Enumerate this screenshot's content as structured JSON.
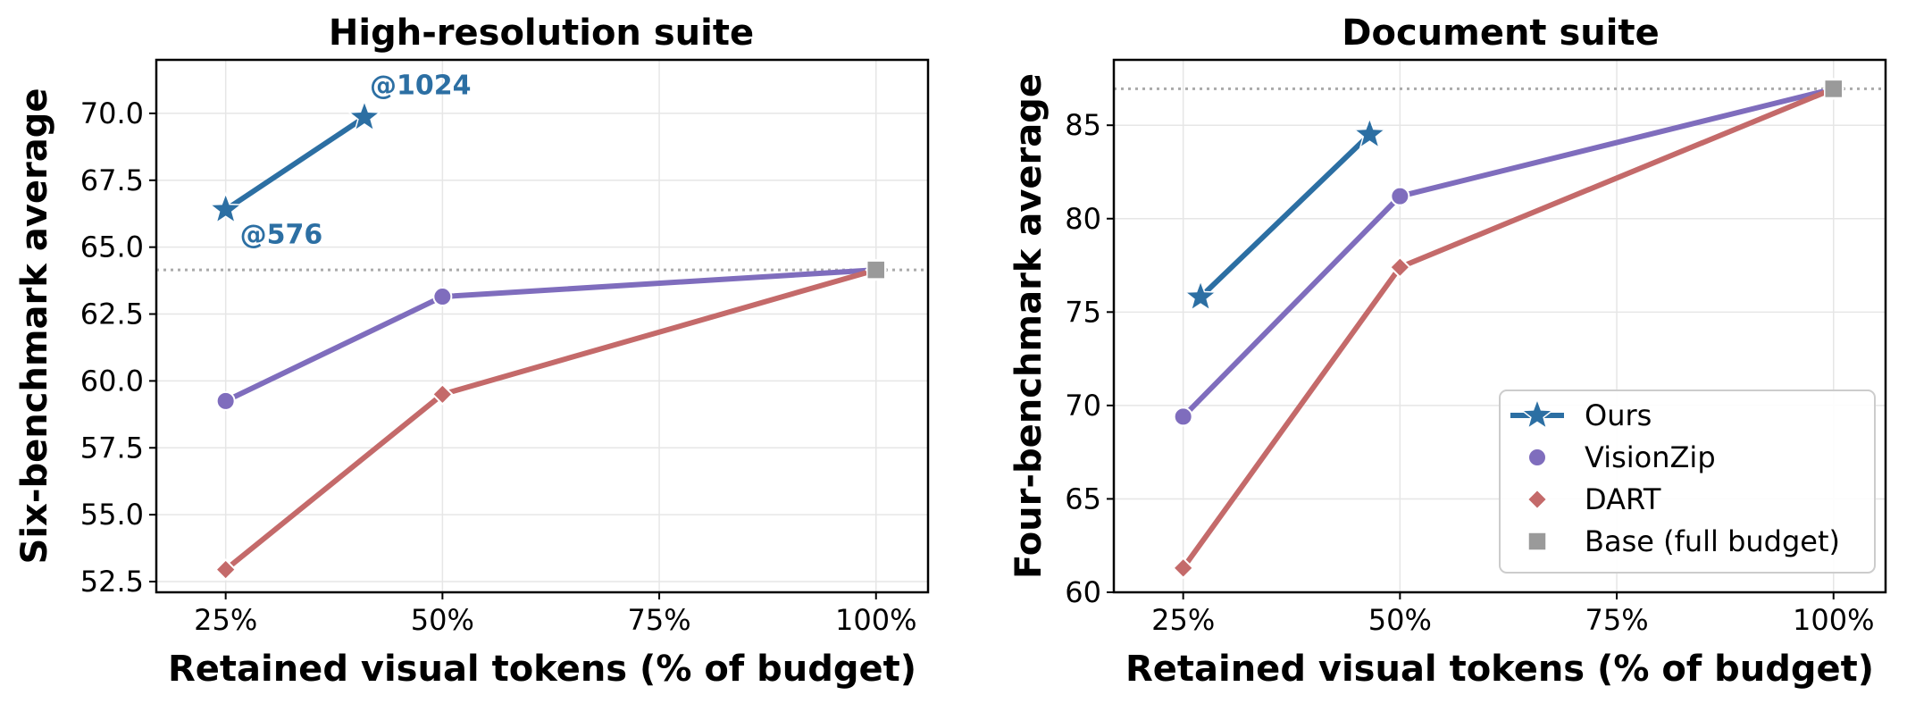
{
  "chart_data": [
    {
      "type": "line",
      "title": "High-resolution suite",
      "xlabel": "Retained visual tokens (% of budget)",
      "ylabel": "Six-benchmark average",
      "xlim": [
        17,
        106
      ],
      "ylim": [
        52.1,
        72.0
      ],
      "xticks": [
        25,
        50,
        75,
        100
      ],
      "xtick_labels": [
        "25%",
        "50%",
        "75%",
        "100%"
      ],
      "yticks": [
        52.5,
        55.0,
        57.5,
        60.0,
        62.5,
        65.0,
        67.5,
        70.0
      ],
      "ytick_labels": [
        "52.5",
        "55.0",
        "57.5",
        "60.0",
        "62.5",
        "65.0",
        "67.5",
        "70.0"
      ],
      "grid": true,
      "reference_line": {
        "y": 64.15,
        "style": "dotted",
        "color": "#aaaaaa"
      },
      "series": [
        {
          "name": "Ours",
          "marker": "star",
          "color": "#2c6fa3",
          "x": [
            25,
            41
          ],
          "y": [
            66.4,
            69.85
          ]
        },
        {
          "name": "VisionZip",
          "marker": "circle",
          "color": "#7f6dbd",
          "x": [
            25,
            50,
            100
          ],
          "y": [
            59.25,
            63.15,
            64.15
          ]
        },
        {
          "name": "DART",
          "marker": "diamond",
          "color": "#c46a6a",
          "x": [
            25,
            50,
            100
          ],
          "y": [
            52.95,
            59.5,
            64.15
          ]
        },
        {
          "name": "Base (full budget)",
          "marker": "square",
          "color": "#9a9a9a",
          "x": [
            100
          ],
          "y": [
            64.15
          ]
        }
      ],
      "annotations": [
        {
          "text": "@1024",
          "x": 41,
          "y": 69.85,
          "color": "#2c6fa3"
        },
        {
          "text": "@576",
          "x": 25,
          "y": 66.4,
          "color": "#2c6fa3"
        }
      ]
    },
    {
      "type": "line",
      "title": "Document suite",
      "xlabel": "Retained visual tokens (% of budget)",
      "ylabel": "Four-benchmark average",
      "xlim": [
        17,
        106
      ],
      "ylim": [
        60,
        88.5
      ],
      "xticks": [
        25,
        50,
        75,
        100
      ],
      "xtick_labels": [
        "25%",
        "50%",
        "75%",
        "100%"
      ],
      "yticks": [
        60,
        65,
        70,
        75,
        80,
        85
      ],
      "ytick_labels": [
        "60",
        "65",
        "70",
        "75",
        "80",
        "85"
      ],
      "grid": true,
      "reference_line": {
        "y": 86.95,
        "style": "dotted",
        "color": "#aaaaaa"
      },
      "legend": {
        "placement": "bottom-right",
        "entries": [
          {
            "label": "Ours",
            "marker": "star",
            "color": "#2c6fa3",
            "line": true
          },
          {
            "label": "VisionZip",
            "marker": "circle",
            "color": "#7f6dbd",
            "line": false
          },
          {
            "label": "DART",
            "marker": "diamond",
            "color": "#c46a6a",
            "line": false
          },
          {
            "label": "Base (full budget)",
            "marker": "square",
            "color": "#9a9a9a",
            "line": false
          }
        ]
      },
      "series": [
        {
          "name": "Ours",
          "marker": "star",
          "color": "#2c6fa3",
          "x": [
            27,
            46.5
          ],
          "y": [
            75.8,
            84.5
          ]
        },
        {
          "name": "VisionZip",
          "marker": "circle",
          "color": "#7f6dbd",
          "x": [
            25,
            50,
            100
          ],
          "y": [
            69.4,
            81.2,
            86.95
          ]
        },
        {
          "name": "DART",
          "marker": "diamond",
          "color": "#c46a6a",
          "x": [
            25,
            50,
            100
          ],
          "y": [
            61.3,
            77.4,
            86.95
          ]
        },
        {
          "name": "Base (full budget)",
          "marker": "square",
          "color": "#9a9a9a",
          "x": [
            100
          ],
          "y": [
            86.95
          ]
        }
      ]
    }
  ]
}
